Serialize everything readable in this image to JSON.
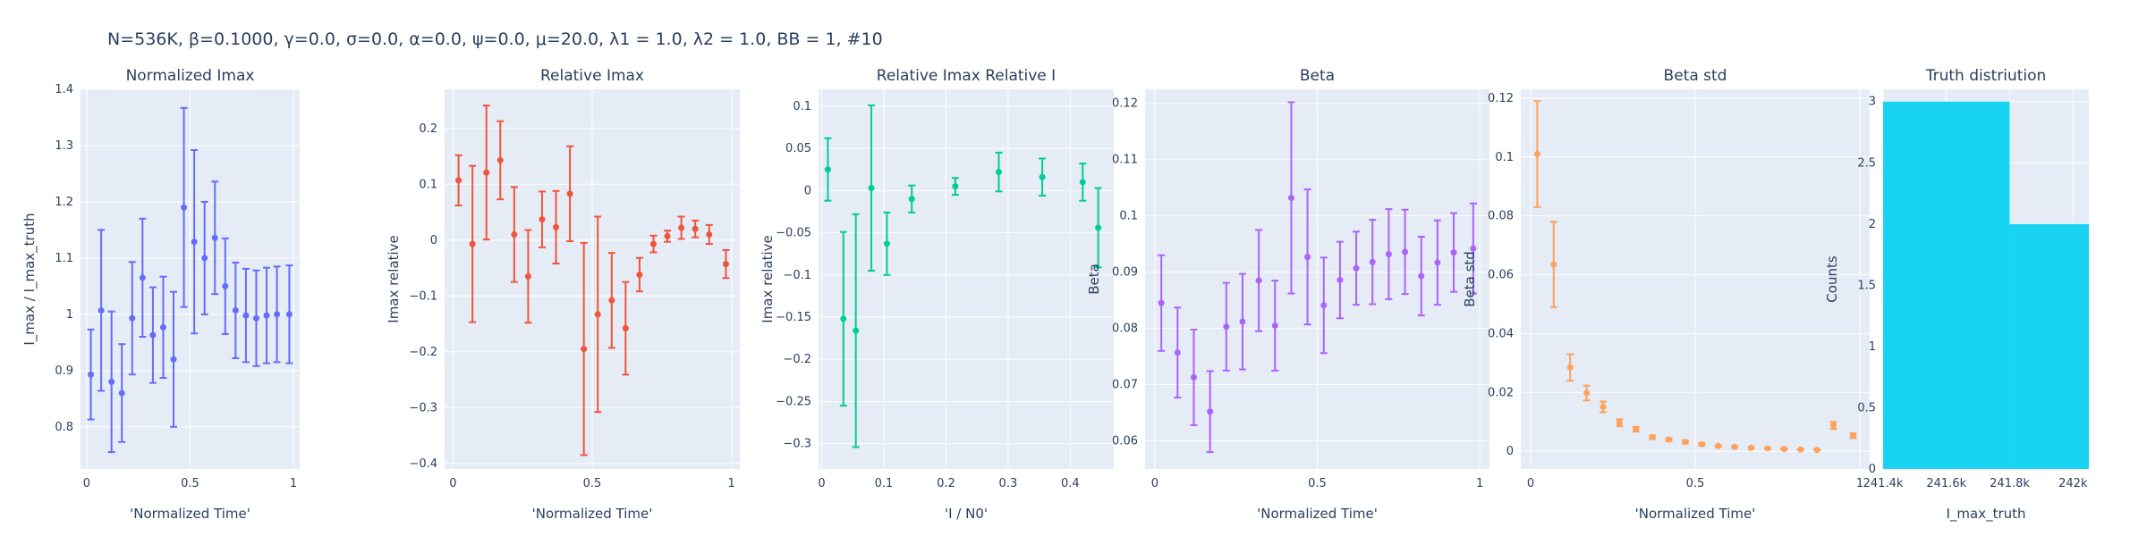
{
  "figure_title": "N=536K, β=0.1000, γ=0.0, σ=0.0,  α=0.0, ψ=0.0, μ=20.0, λ1 = 1.0, λ2 = 1.0, BB = 1, #10",
  "colors": {
    "plot_bg": "#e5ecf6",
    "grid": "#ffffff",
    "text": "#2a3f5f"
  },
  "chart_data": [
    {
      "type": "scatter",
      "title": "Normalized Imax",
      "xlabel": "'Normalized Time'",
      "ylabel": "I_max / I_max_truth",
      "color": "#636efa",
      "xlim": [
        -0.03,
        1.03
      ],
      "ylim": [
        0.725,
        1.4
      ],
      "xticks": [
        0,
        0.5,
        1
      ],
      "xtick_labels": [
        "0",
        "0.5",
        "1"
      ],
      "yticks": [
        0.8,
        0.9,
        1,
        1.1,
        1.2,
        1.3,
        1.4
      ],
      "ytick_labels": [
        "0.8",
        "0.9",
        "1",
        "1.1",
        "1.2",
        "1.3",
        "1.4"
      ],
      "x": [
        0.02,
        0.07,
        0.12,
        0.17,
        0.22,
        0.27,
        0.32,
        0.37,
        0.42,
        0.47,
        0.52,
        0.57,
        0.62,
        0.67,
        0.72,
        0.77,
        0.82,
        0.87,
        0.92,
        0.98
      ],
      "y": [
        0.893,
        1.007,
        0.88,
        0.86,
        0.993,
        1.065,
        0.963,
        0.977,
        0.92,
        1.19,
        1.129,
        1.1,
        1.136,
        1.05,
        1.007,
        0.998,
        0.993,
        0.998,
        1.0,
        1.0
      ],
      "err": [
        0.08,
        0.143,
        0.125,
        0.087,
        0.1,
        0.105,
        0.085,
        0.09,
        0.12,
        0.177,
        0.163,
        0.1,
        0.1,
        0.085,
        0.085,
        0.083,
        0.085,
        0.085,
        0.085,
        0.087
      ]
    },
    {
      "type": "scatter",
      "title": "Relative Imax",
      "xlabel": "'Normalized Time'",
      "ylabel": "Imax relative",
      "color": "#ef553b",
      "xlim": [
        -0.03,
        1.03
      ],
      "ylim": [
        -0.41,
        0.27
      ],
      "xticks": [
        0,
        0.5,
        1
      ],
      "xtick_labels": [
        "0",
        "0.5",
        "1"
      ],
      "yticks": [
        -0.4,
        -0.3,
        -0.2,
        -0.1,
        0,
        0.1,
        0.2
      ],
      "ytick_labels": [
        "−0.4",
        "−0.3",
        "−0.2",
        "−0.1",
        "0",
        "0.1",
        "0.2"
      ],
      "x": [
        0.02,
        0.07,
        0.12,
        0.17,
        0.22,
        0.27,
        0.32,
        0.37,
        0.42,
        0.47,
        0.52,
        0.57,
        0.62,
        0.67,
        0.72,
        0.77,
        0.82,
        0.87,
        0.92,
        0.98
      ],
      "y": [
        0.107,
        -0.007,
        0.121,
        0.143,
        0.01,
        -0.065,
        0.037,
        0.023,
        0.083,
        -0.195,
        -0.133,
        -0.108,
        -0.158,
        -0.062,
        -0.007,
        0.007,
        0.022,
        0.02,
        0.01,
        -0.043
      ],
      "err": [
        0.045,
        0.14,
        0.12,
        0.07,
        0.085,
        0.083,
        0.05,
        0.065,
        0.085,
        0.19,
        0.175,
        0.085,
        0.083,
        0.03,
        0.015,
        0.01,
        0.02,
        0.015,
        0.017,
        0.025
      ]
    },
    {
      "type": "scatter",
      "title": "Relative Imax Relative I",
      "xlabel": "'I / N0'",
      "ylabel": "Imax relative",
      "color": "#00cc96",
      "xlim": [
        -0.005,
        0.47
      ],
      "ylim": [
        -0.33,
        0.12
      ],
      "xticks": [
        0,
        0.1,
        0.2,
        0.3,
        0.4
      ],
      "xtick_labels": [
        "0",
        "0.1",
        "0.2",
        "0.3",
        "0.4"
      ],
      "yticks": [
        -0.3,
        -0.25,
        -0.2,
        -0.15,
        -0.1,
        -0.05,
        0,
        0.05,
        0.1
      ],
      "ytick_labels": [
        "−0.3",
        "−0.25",
        "−0.2",
        "−0.15",
        "−0.1",
        "−0.05",
        "0",
        "0.05",
        "0.1"
      ],
      "x": [
        0.01,
        0.035,
        0.055,
        0.08,
        0.105,
        0.145,
        0.215,
        0.285,
        0.355,
        0.42,
        0.445
      ],
      "y": [
        0.025,
        -0.152,
        -0.166,
        0.003,
        -0.063,
        -0.01,
        0.005,
        0.022,
        0.016,
        0.01,
        -0.044
      ],
      "err": [
        0.037,
        0.103,
        0.138,
        0.098,
        0.037,
        0.016,
        0.01,
        0.023,
        0.022,
        0.022,
        0.047
      ]
    },
    {
      "type": "scatter",
      "title": "Beta",
      "xlabel": "'Normalized Time'",
      "ylabel": "Beta",
      "color": "#ab63fa",
      "xlim": [
        -0.03,
        1.03
      ],
      "ylim": [
        0.055,
        0.1225
      ],
      "xticks": [
        0,
        0.5,
        1
      ],
      "xtick_labels": [
        "0",
        "0.5",
        "1"
      ],
      "yticks": [
        0.06,
        0.07,
        0.08,
        0.09,
        0.1,
        0.11,
        0.12
      ],
      "ytick_labels": [
        "0.06",
        "0.07",
        "0.08",
        "0.09",
        "0.1",
        "0.11",
        "0.12"
      ],
      "x": [
        0.02,
        0.07,
        0.12,
        0.17,
        0.22,
        0.27,
        0.32,
        0.37,
        0.42,
        0.47,
        0.52,
        0.57,
        0.62,
        0.67,
        0.72,
        0.77,
        0.82,
        0.87,
        0.92,
        0.98
      ],
      "y": [
        0.0845,
        0.0757,
        0.0713,
        0.0652,
        0.0803,
        0.0812,
        0.0885,
        0.0805,
        0.1032,
        0.0927,
        0.0841,
        0.0886,
        0.0907,
        0.0918,
        0.0932,
        0.0936,
        0.0893,
        0.0917,
        0.0935,
        0.0942
      ],
      "err": [
        0.0085,
        0.008,
        0.0085,
        0.0072,
        0.0078,
        0.0085,
        0.009,
        0.008,
        0.017,
        0.012,
        0.0085,
        0.0068,
        0.0065,
        0.0075,
        0.008,
        0.0075,
        0.007,
        0.0075,
        0.007,
        0.008
      ]
    },
    {
      "type": "scatter",
      "title": "Beta std",
      "xlabel": "'Normalized Time'",
      "ylabel": "Beta std",
      "color": "#ffa15a",
      "xlim": [
        -0.03,
        1.03
      ],
      "ylim": [
        -0.006,
        0.123
      ],
      "xticks": [
        0,
        0.5,
        1
      ],
      "xtick_labels": [
        "0",
        "0.5",
        "1"
      ],
      "yticks": [
        0,
        0.02,
        0.04,
        0.06,
        0.08,
        0.1,
        0.12
      ],
      "ytick_labels": [
        "0",
        "0.02",
        "0.04",
        "0.06",
        "0.08",
        "0.1",
        "0.12"
      ],
      "x": [
        0.02,
        0.07,
        0.12,
        0.17,
        0.22,
        0.27,
        0.32,
        0.37,
        0.42,
        0.47,
        0.52,
        0.57,
        0.62,
        0.67,
        0.72,
        0.77,
        0.82,
        0.87,
        0.92,
        0.98
      ],
      "y": [
        0.101,
        0.0635,
        0.0285,
        0.0198,
        0.0151,
        0.0097,
        0.0075,
        0.0048,
        0.004,
        0.0032,
        0.0024,
        0.0018,
        0.0015,
        0.0012,
        0.001,
        0.0008,
        0.0006,
        0.0005,
        0.0088,
        0.0053
      ],
      "err": [
        0.018,
        0.0145,
        0.0045,
        0.0025,
        0.0018,
        0.0012,
        0.0008,
        0.0006,
        0.0005,
        0.0005,
        0.0004,
        0.0003,
        0.0003,
        0.0002,
        0.0002,
        0.0002,
        0.0001,
        0.0001,
        0.0012,
        0.0008
      ]
    },
    {
      "type": "bar",
      "title": "Truth distriution",
      "xlabel": "I_max_truth",
      "ylabel": "Counts",
      "color": "#19d3f3",
      "xlim": [
        241400,
        242050
      ],
      "ylim": [
        0,
        3.1
      ],
      "xticks": [
        241400,
        241600,
        241800,
        242000
      ],
      "xtick_labels": [
        "241.4k",
        "241.6k",
        "241.8k",
        "242k"
      ],
      "yticks": [
        0,
        0.5,
        1,
        1.5,
        2,
        2.5,
        3
      ],
      "ytick_labels": [
        "0",
        "0.5",
        "1",
        "1.5",
        "2",
        "2.5",
        "3"
      ],
      "bins": [
        {
          "x0": 241400,
          "x1": 241800,
          "count": 3
        },
        {
          "x0": 241800,
          "x1": 242050,
          "count": 2
        }
      ]
    }
  ]
}
